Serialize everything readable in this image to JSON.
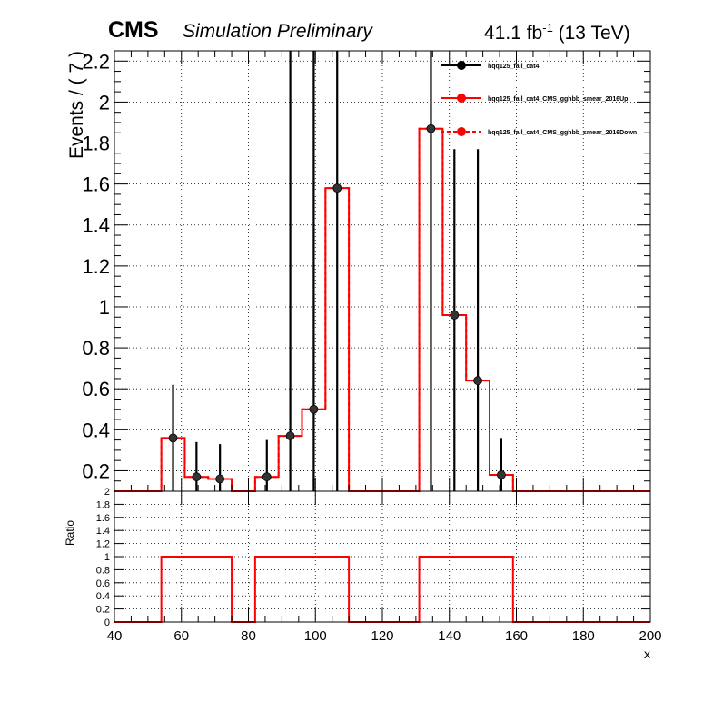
{
  "header": {
    "experiment": "CMS",
    "subtitle": "Simulation Preliminary",
    "lumi_value": "41.1 fb",
    "lumi_exp": "-1",
    "lumi_energy": " (13 TeV)"
  },
  "chart_data": [
    {
      "panel": "main",
      "type": "step",
      "xlim": [
        40,
        200
      ],
      "ylim": [
        0.1,
        2.25
      ],
      "ylabel": "Events / ( 7 )",
      "yticks": [
        "0.2",
        "0.4",
        "0.6",
        "0.8",
        "1",
        "1.2",
        "1.4",
        "1.6",
        "1.8",
        "2",
        "2.2"
      ],
      "grid": true,
      "legend_position": "top-right",
      "bin_edges": [
        40,
        47,
        54,
        61,
        68,
        75,
        82,
        89,
        96,
        103,
        110,
        117,
        124,
        131,
        138,
        145,
        152,
        159,
        166,
        173,
        180,
        187,
        194,
        201
      ],
      "series": [
        {
          "name": "hqq125_fail_cat4",
          "style": "points",
          "color": "#000000",
          "points": [
            {
              "x": 57.5,
              "y": 0.36,
              "lo": 0.1,
              "hi": 0.62
            },
            {
              "x": 64.5,
              "y": 0.17,
              "lo": 0.1,
              "hi": 0.34
            },
            {
              "x": 71.5,
              "y": 0.16,
              "lo": 0.1,
              "hi": 0.33
            },
            {
              "x": 85.5,
              "y": 0.17,
              "lo": 0.1,
              "hi": 0.35
            },
            {
              "x": 92.5,
              "y": 0.37,
              "lo": 0.1,
              "hi": 2.25
            },
            {
              "x": 99.5,
              "y": 0.5,
              "lo": 0.1,
              "hi": 2.25
            },
            {
              "x": 106.5,
              "y": 1.58,
              "lo": 0.1,
              "hi": 2.25
            },
            {
              "x": 134.5,
              "y": 1.87,
              "lo": 0.1,
              "hi": 2.25
            },
            {
              "x": 141.5,
              "y": 0.96,
              "lo": 0.1,
              "hi": 1.77
            },
            {
              "x": 148.5,
              "y": 0.64,
              "lo": 0.1,
              "hi": 1.77
            },
            {
              "x": 155.5,
              "y": 0.18,
              "lo": 0.1,
              "hi": 0.36
            }
          ]
        },
        {
          "name": "hqq125_fail_cat4_CMS_gghbb_smear_2016Up",
          "style": "solid",
          "color": "#ff0000",
          "values": [
            0,
            0,
            0.36,
            0.17,
            0.16,
            0,
            0.17,
            0.37,
            0.5,
            1.58,
            0,
            0,
            0,
            1.87,
            0.96,
            0.64,
            0.18,
            0,
            0,
            0,
            0,
            0,
            0
          ]
        },
        {
          "name": "hqq125_fail_cat4_CMS_gghbb_smear_2016Down",
          "style": "dashed",
          "color": "#ff0000",
          "values": [
            0,
            0,
            0.36,
            0.17,
            0.16,
            0,
            0.17,
            0.37,
            0.5,
            1.58,
            0,
            0,
            0,
            1.87,
            0.96,
            0.64,
            0.18,
            0,
            0,
            0,
            0,
            0,
            0
          ]
        }
      ]
    },
    {
      "panel": "ratio",
      "type": "step",
      "xlim": [
        40,
        200
      ],
      "ylim": [
        0,
        2
      ],
      "ylabel": "Ratio",
      "xlabel": "x",
      "xticks": [
        "40",
        "60",
        "80",
        "100",
        "120",
        "140",
        "160",
        "180",
        "200"
      ],
      "yticks": [
        "0",
        "0.2",
        "0.4",
        "0.6",
        "0.8",
        "1",
        "1.2",
        "1.4",
        "1.6",
        "1.8",
        "2"
      ],
      "grid": true,
      "series": [
        {
          "name": "ratio",
          "style": "solid",
          "color": "#ff0000",
          "values": [
            0,
            0,
            1,
            1,
            1,
            0,
            1,
            1,
            1,
            1,
            0,
            0,
            0,
            1,
            1,
            1,
            1,
            0,
            0,
            0,
            0,
            0,
            0
          ]
        }
      ]
    }
  ]
}
